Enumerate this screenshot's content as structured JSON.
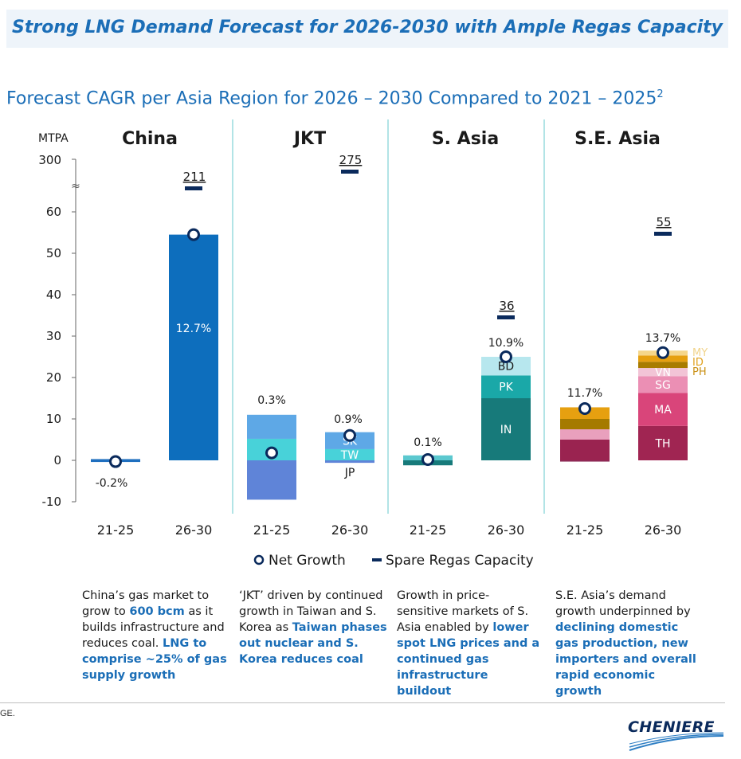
{
  "banner": {
    "title": "Strong LNG Demand Forecast for 2026-2030 with Ample Regas Capacity"
  },
  "subtitle": {
    "text": "Forecast CAGR per Asia Region for 2026 – 2030 Compared to 2021 – 2025",
    "superscript": "2"
  },
  "colors": {
    "accent": "#1b6eb7",
    "navy": "#0a2a5c",
    "divider": "#7fd3d6"
  },
  "chart_data": {
    "type": "bar",
    "title": "Forecast CAGR per Asia Region for 2026 – 2030 Compared to 2021 – 2025",
    "ylabel": "MTPA",
    "y_ticks": [
      "300",
      "60",
      "50",
      "40",
      "30",
      "20",
      "10",
      "0",
      "-10"
    ],
    "y_break": "≈",
    "ylim": [
      -10,
      65
    ],
    "legend": {
      "net_growth": "Net Growth",
      "spare_regas": "Spare Regas Capacity",
      "placement": "bottom"
    },
    "regions": [
      {
        "name": "China",
        "bars": [
          {
            "period": "21-25",
            "cagr": "-0.2%",
            "net_growth": -0.3,
            "spare_regas": null,
            "segments": [
              {
                "label": "",
                "from": -0.4,
                "to": 0.3,
                "color": "#1f6fbf"
              }
            ]
          },
          {
            "period": "26-30",
            "cagr": "12.7%",
            "net_growth": 54.5,
            "spare_regas": "211",
            "segments": [
              {
                "label": "",
                "from": 0,
                "to": 54.5,
                "color": "#0d6ebd"
              }
            ]
          }
        ]
      },
      {
        "name": "JKT",
        "bars": [
          {
            "period": "21-25",
            "cagr": "0.3%",
            "net_growth": 1.8,
            "spare_regas": null,
            "segments": [
              {
                "label": "",
                "from": 5.2,
                "to": 11.0,
                "color": "#5ea8e6"
              },
              {
                "label": "",
                "from": 0,
                "to": 5.2,
                "color": "#48d2d9"
              },
              {
                "label": "",
                "from": -9.5,
                "to": 0,
                "color": "#5f84d8"
              }
            ]
          },
          {
            "period": "26-30",
            "cagr": "0.9%",
            "net_growth": 6.0,
            "spare_regas": "275",
            "segments": [
              {
                "label": "SK",
                "from": 2.7,
                "to": 6.8,
                "color": "#5ea8e6"
              },
              {
                "label": "TW",
                "from": 0,
                "to": 2.7,
                "color": "#48d2d9"
              },
              {
                "label": "JP",
                "from": -0.6,
                "to": 0,
                "color": "#5f84d8"
              }
            ]
          }
        ]
      },
      {
        "name": "S. Asia",
        "bars": [
          {
            "period": "21-25",
            "cagr": "0.1%",
            "net_growth": 0.2,
            "spare_regas": null,
            "segments": [
              {
                "label": "",
                "from": 0,
                "to": 1.2,
                "color": "#5bc8cf"
              },
              {
                "label": "",
                "from": -1.2,
                "to": 0,
                "color": "#177a7a"
              }
            ]
          },
          {
            "period": "26-30",
            "cagr": "10.9%",
            "net_growth": 25.0,
            "spare_regas": "36",
            "segments": [
              {
                "label": "IN",
                "from": 0,
                "to": 15.0,
                "color": "#177a7a"
              },
              {
                "label": "PK",
                "from": 15.0,
                "to": 20.5,
                "color": "#1aa8a8"
              },
              {
                "label": "BD",
                "from": 20.5,
                "to": 25.0,
                "color": "#b7e7ee"
              }
            ]
          }
        ]
      },
      {
        "name": "S.E. Asia",
        "bars": [
          {
            "period": "21-25",
            "cagr": "11.7%",
            "net_growth": 12.5,
            "spare_regas": null,
            "segments": [
              {
                "label": "",
                "from": -0.3,
                "to": 0,
                "color": "#8c2a55"
              },
              {
                "label": "",
                "from": 0,
                "to": 5.0,
                "color": "#9a2350"
              },
              {
                "label": "",
                "from": 5.0,
                "to": 7.5,
                "color": "#e9a0bd"
              },
              {
                "label": "",
                "from": 7.5,
                "to": 10.0,
                "color": "#a57a00"
              },
              {
                "label": "",
                "from": 10.0,
                "to": 12.8,
                "color": "#e6a010"
              }
            ]
          },
          {
            "period": "26-30",
            "cagr": "13.7%",
            "net_growth": 26.0,
            "spare_regas": "55",
            "segments": [
              {
                "label": "TH",
                "from": 0,
                "to": 8.3,
                "color": "#a02552"
              },
              {
                "label": "MA",
                "from": 8.3,
                "to": 16.3,
                "color": "#d9457a"
              },
              {
                "label": "SG",
                "from": 16.3,
                "to": 20.3,
                "color": "#eb8fb4"
              },
              {
                "label": "VN",
                "from": 20.3,
                "to": 22.3,
                "color": "#f2c4d6"
              },
              {
                "label": "PH",
                "from": 22.3,
                "to": 23.8,
                "color": "#a87c00"
              },
              {
                "label": "ID",
                "from": 23.8,
                "to": 25.3,
                "color": "#e6a010"
              },
              {
                "label": "MY",
                "from": 25.3,
                "to": 26.5,
                "color": "#f5d68a"
              }
            ]
          }
        ]
      }
    ],
    "side_labels": [
      {
        "label": "MY",
        "color": "#f1d48c"
      },
      {
        "label": "ID",
        "color": "#e0a11c"
      },
      {
        "label": "PH",
        "color": "#c98f12"
      }
    ]
  },
  "descriptions": [
    [
      {
        "t": "China’s gas market to grow to ",
        "h": false
      },
      {
        "t": "600 bcm",
        "h": true
      },
      {
        "t": " as it builds infrastructure and reduces coal. ",
        "h": false
      },
      {
        "t": "LNG to comprise ~25% of gas supply growth",
        "h": true
      }
    ],
    [
      {
        "t": "‘JKT’ driven by continued growth in Taiwan and S. Korea as ",
        "h": false
      },
      {
        "t": "Taiwan phases out nuclear and S. Korea reduces coal",
        "h": true
      }
    ],
    [
      {
        "t": "Growth in price-sensitive markets of S. Asia enabled by ",
        "h": false
      },
      {
        "t": "lower spot LNG prices and a continued gas infrastructure buildout",
        "h": true
      }
    ],
    [
      {
        "t": "S.E. Asia’s demand growth underpinned by ",
        "h": false
      },
      {
        "t": "declining domestic gas production, new importers and overall rapid economic growth",
        "h": true
      }
    ]
  ],
  "footer": {
    "footnote": "GE.",
    "logo_text": "CHENIERE"
  }
}
